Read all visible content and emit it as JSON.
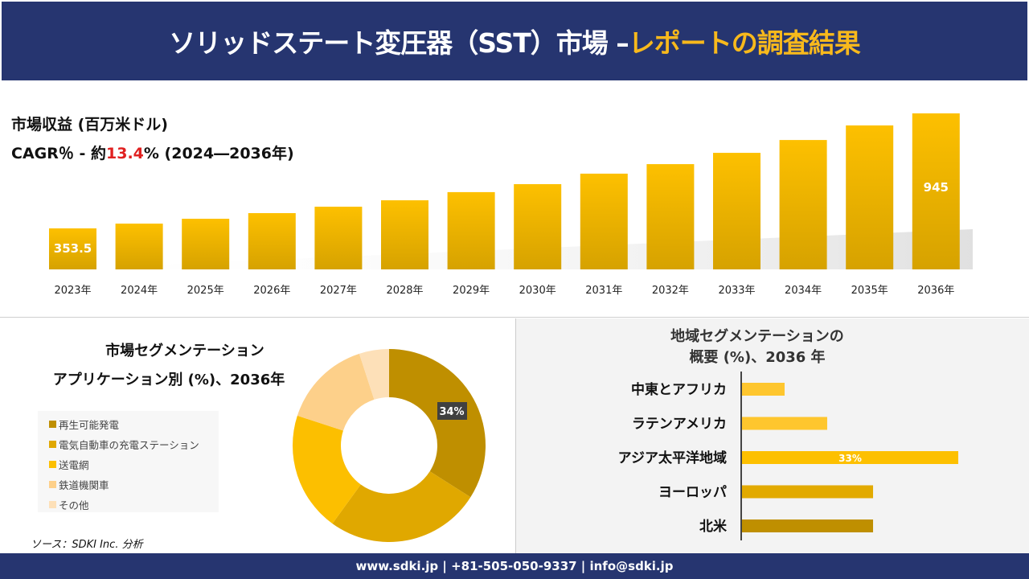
{
  "header": {
    "title_main": "ソリッドステート変圧器（SST）市場 –",
    "title_accent": "レポートの調査結果"
  },
  "colors": {
    "header_bg": "#263570",
    "accent": "#f8b91c",
    "cagr_red": "#e02020"
  },
  "chart_data": [
    {
      "type": "bar",
      "title": "市場収益 (百万米ドル)",
      "subtitle_prefix": "CAGR％ - 約",
      "cagr": "13.4",
      "subtitle_suffix": "% (2024―2036年)",
      "categories": [
        "2023年",
        "2024年",
        "2025年",
        "2026年",
        "2027年",
        "2028年",
        "2029年",
        "2030年",
        "2031年",
        "2032年",
        "2033年",
        "2034年",
        "2035年",
        "2036年"
      ],
      "values": [
        353.5,
        378,
        403,
        432,
        465,
        498,
        540,
        581,
        635,
        684,
        742,
        808,
        883,
        945
      ],
      "data_labels": {
        "0": "353.5",
        "13": "945"
      }
    },
    {
      "type": "pie",
      "variant": "donut",
      "title_line1": "市場セグメンテーション",
      "title_line2": "アプリケーション別 (%)、2036年",
      "categories": [
        "再生可能発電",
        "電気自動車の充電ステーション",
        "送電網",
        "鉄道機関車",
        "その他"
      ],
      "values": [
        34,
        26,
        20,
        15,
        5
      ],
      "colors": [
        "#bf8f00",
        "#e0a800",
        "#fcbf00",
        "#fdd08a",
        "#fde0b8"
      ],
      "data_label": "34%"
    },
    {
      "type": "bar",
      "orientation": "horizontal",
      "title_line1": "地域セグメンテーションの",
      "title_line2": "概要 (%)、2036 年",
      "categories": [
        "中東とアフリカ",
        "ラテンアメリカ",
        "アジア太平洋地域",
        "ヨーロッパ",
        "北米"
      ],
      "values": [
        6.5,
        13,
        33,
        20,
        20
      ],
      "colors": [
        "#fec62e",
        "#fec62e",
        "#fdc000",
        "#e2aa00",
        "#bf8f00"
      ],
      "data_label": "33%"
    }
  ],
  "source": "ソース：SDKI Inc. 分析",
  "footer": "www.sdki.jp | +81-505-050-9337 | info@sdki.jp"
}
